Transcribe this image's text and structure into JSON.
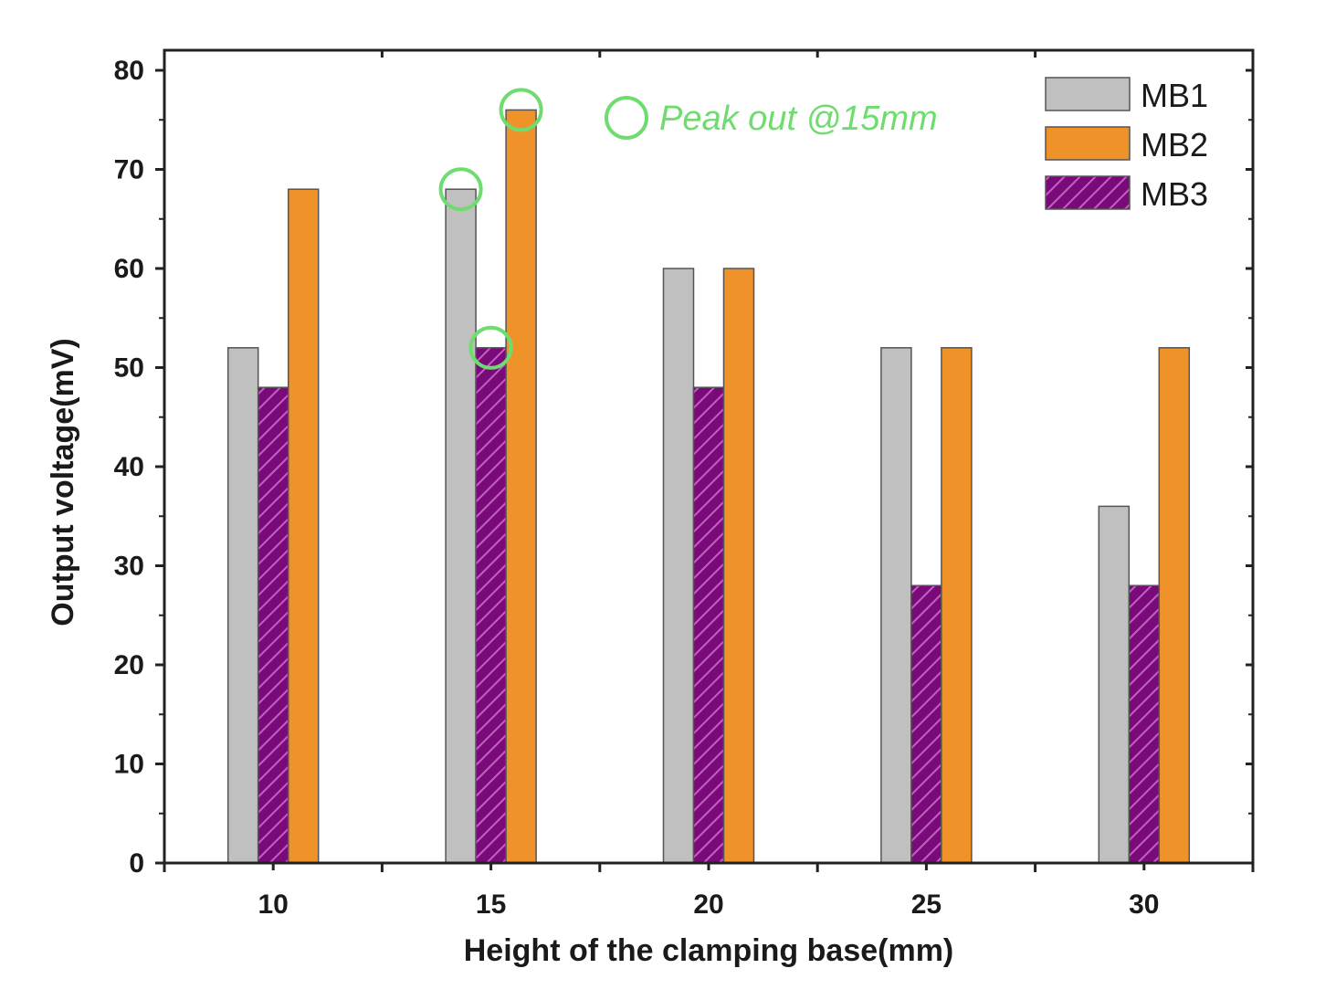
{
  "chart_data": {
    "type": "bar",
    "title": "",
    "xlabel": "Height of the clamping base(mm)",
    "ylabel": "Output voltage(mV)",
    "ylim": [
      0,
      80
    ],
    "yticks": [
      0,
      10,
      20,
      30,
      40,
      50,
      60,
      70,
      80
    ],
    "categories": [
      "10",
      "15",
      "20",
      "25",
      "30"
    ],
    "series": [
      {
        "name": "MB1",
        "values": [
          52,
          68,
          60,
          52,
          36
        ],
        "color": "#c0c0c0",
        "pattern": "solid"
      },
      {
        "name": "MB3",
        "values": [
          48,
          52,
          48,
          28,
          28
        ],
        "color": "#7a0a7a",
        "pattern": "hatched"
      },
      {
        "name": "MB2",
        "values": [
          68,
          76,
          60,
          52,
          52
        ],
        "color": "#f0922a",
        "pattern": "solid"
      }
    ],
    "legend": {
      "position": "top-right",
      "entries": [
        "MB1",
        "MB2",
        "MB3"
      ]
    },
    "annotation": {
      "text": "Peak out @15mm",
      "color": "#6fdc6f",
      "highlighted": [
        {
          "category": "15",
          "series": "MB1",
          "value": 68
        },
        {
          "category": "15",
          "series": "MB3",
          "value": 52
        },
        {
          "category": "15",
          "series": "MB2",
          "value": 76
        }
      ]
    },
    "grid": false
  }
}
